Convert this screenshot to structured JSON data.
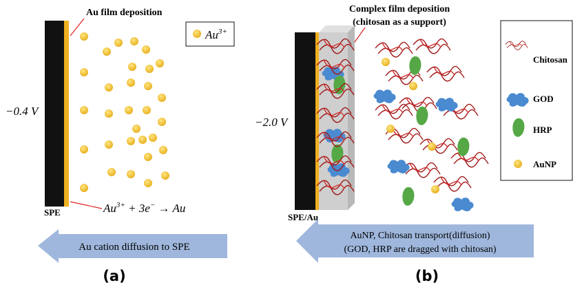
{
  "panel_a": {
    "top_label": "Au film deposition",
    "legend": {
      "base": "Au",
      "sup": "3+"
    },
    "voltage": "−0.4 V",
    "electrode": "SPE",
    "equation": {
      "p1": "Au",
      "p2": "3+",
      "p3": " + 3e",
      "p4": "−",
      "p5": " → Au"
    },
    "arrow_text": "Au cation diffusion to SPE",
    "caption": "(a)"
  },
  "panel_b": {
    "top_label": [
      "Complex film deposition",
      "(chitosan as a support)"
    ],
    "voltage": "−2.0 V",
    "electrode": "SPE/Au",
    "legend": [
      "Chitosan",
      "GOD",
      "HRP",
      "AuNP"
    ],
    "arrow_text": [
      "AuNP, Chitosan transport(diffusion)",
      "(GOD, HRP are dragged with chitosan)"
    ],
    "caption": "(b)"
  }
}
